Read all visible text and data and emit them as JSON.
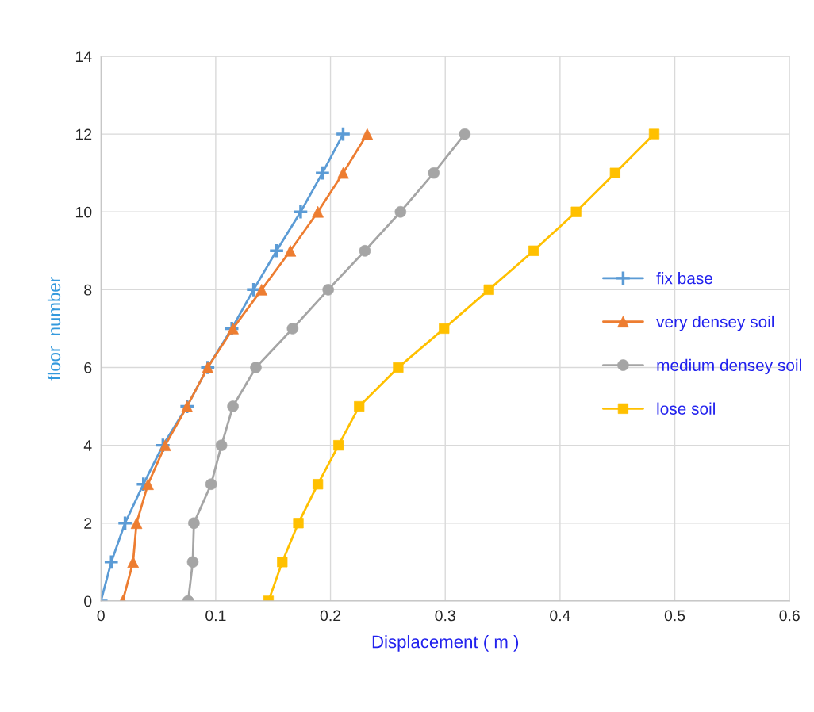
{
  "chart_data": {
    "type": "line",
    "xlabel": "Displacement ( m )",
    "ylabel": "floor  number",
    "xlim": [
      0,
      0.6
    ],
    "xticks": [
      0,
      0.1,
      0.2,
      0.3,
      0.4,
      0.5,
      0.6
    ],
    "ylim": [
      0,
      14
    ],
    "yticks": [
      0,
      2,
      4,
      6,
      8,
      10,
      12,
      14
    ],
    "grid": true,
    "legend": "right",
    "line_style": "solid",
    "series": [
      {
        "name": "fix base",
        "color": "#5b9bd5",
        "marker": "cross",
        "x": [
          0.0,
          0.009,
          0.021,
          0.037,
          0.054,
          0.075,
          0.093,
          0.114,
          0.133,
          0.153,
          0.174,
          0.193,
          0.211
        ],
        "values": [
          0,
          1,
          2,
          3,
          4,
          5,
          6,
          7,
          8,
          9,
          10,
          11,
          12
        ]
      },
      {
        "name": "very densey soil",
        "color": "#ed7d31",
        "marker": "triangle",
        "x": [
          0.019,
          0.028,
          0.031,
          0.041,
          0.056,
          0.075,
          0.093,
          0.115,
          0.14,
          0.165,
          0.189,
          0.211,
          0.232
        ],
        "values": [
          0,
          1,
          2,
          3,
          4,
          5,
          6,
          7,
          8,
          9,
          10,
          11,
          12
        ]
      },
      {
        "name": "medium densey soil",
        "color": "#a5a5a5",
        "marker": "circle",
        "x": [
          0.076,
          0.08,
          0.081,
          0.096,
          0.105,
          0.115,
          0.135,
          0.167,
          0.198,
          0.23,
          0.261,
          0.29,
          0.317
        ],
        "values": [
          0,
          1,
          2,
          3,
          4,
          5,
          6,
          7,
          8,
          9,
          10,
          11,
          12
        ]
      },
      {
        "name": "lose soil",
        "color": "#ffc000",
        "marker": "square",
        "x": [
          0.146,
          0.158,
          0.172,
          0.189,
          0.207,
          0.225,
          0.259,
          0.299,
          0.338,
          0.377,
          0.414,
          0.448,
          0.482
        ],
        "values": [
          0,
          1,
          2,
          3,
          4,
          5,
          6,
          7,
          8,
          9,
          10,
          11,
          12
        ]
      }
    ]
  }
}
